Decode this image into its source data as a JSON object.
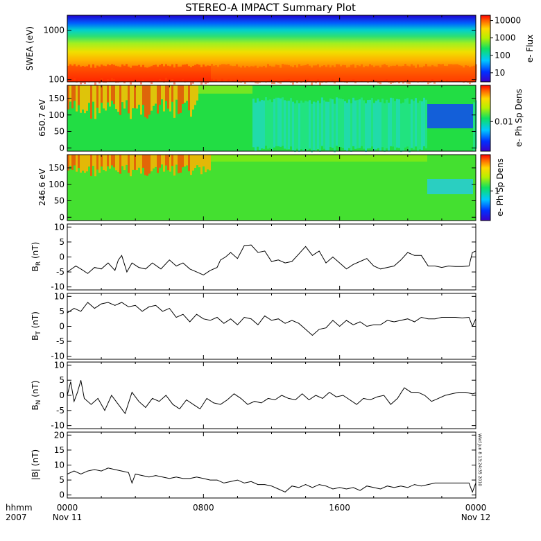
{
  "title": "STEREO-A IMPACT Summary Plot",
  "timestamp_stamp": "Wed Jun  8 13:24:35 2010",
  "x_axis": {
    "label_top": "hhmm",
    "label_bottom": "2007",
    "ticks": [
      {
        "hours": 0,
        "label": "0000",
        "date": "Nov 11"
      },
      {
        "hours": 8,
        "label": "0800",
        "date": ""
      },
      {
        "hours": 16,
        "label": "1600",
        "date": ""
      },
      {
        "hours": 24,
        "label": "0000",
        "date": "Nov 12"
      }
    ]
  },
  "chart_data": [
    {
      "type": "heatmap",
      "id": "swea-spectrogram",
      "ylabel": "SWEA (eV)",
      "yscale": "log",
      "ylim": [
        90,
        2000
      ],
      "yticks": [
        {
          "v": 100,
          "label": "100"
        },
        {
          "v": 1000,
          "label": "1000"
        }
      ],
      "colorbar": {
        "label": "e- Flux",
        "scale": "log",
        "range": [
          3,
          20000
        ],
        "ticks": [
          {
            "v": 10,
            "label": "10"
          },
          {
            "v": 100,
            "label": "100"
          },
          {
            "v": 1000,
            "label": "1000"
          },
          {
            "v": 10000,
            "label": "10000"
          }
        ]
      },
      "x_hours": [
        0,
        24
      ]
    },
    {
      "type": "heatmap",
      "id": "pad-650",
      "ylabel": "650.7 eV",
      "ylim": [
        -10,
        190
      ],
      "yticks": [
        {
          "v": 0,
          "label": "0"
        },
        {
          "v": 50,
          "label": "50"
        },
        {
          "v": 100,
          "label": "100"
        },
        {
          "v": 150,
          "label": "150"
        }
      ],
      "colorbar": {
        "label": "e- Ph Sp Dens",
        "scale": "log",
        "ticks": [
          {
            "v": 0.01,
            "label": "0.01"
          }
        ]
      },
      "x_hours": [
        0,
        24
      ]
    },
    {
      "type": "heatmap",
      "id": "pad-246",
      "ylabel": "246.6 eV",
      "ylim": [
        -10,
        190
      ],
      "yticks": [
        {
          "v": 0,
          "label": "0"
        },
        {
          "v": 50,
          "label": "50"
        },
        {
          "v": 100,
          "label": "100"
        },
        {
          "v": 150,
          "label": "150"
        }
      ],
      "colorbar": {
        "label": "e- Ph Sp Dens",
        "scale": "log",
        "ticks": [
          {
            "v": 1,
            "label": "1"
          }
        ]
      },
      "x_hours": [
        0,
        24
      ]
    },
    {
      "type": "line",
      "id": "br",
      "ylabel": "B_R (nT)",
      "ylim": [
        -11,
        11
      ],
      "yticks": [
        {
          "v": -10,
          "label": "-10"
        },
        {
          "v": -5,
          "label": "-5"
        },
        {
          "v": 0,
          "label": "0"
        },
        {
          "v": 5,
          "label": "5"
        },
        {
          "v": 10,
          "label": "10"
        }
      ],
      "x": [
        0,
        0.5,
        0.8,
        1.2,
        1.6,
        2.0,
        2.4,
        2.8,
        3.0,
        3.2,
        3.5,
        3.8,
        4.2,
        4.6,
        5.0,
        5.5,
        6.0,
        6.4,
        6.8,
        7.2,
        7.6,
        8.0,
        8.4,
        8.8,
        9.0,
        9.3,
        9.6,
        10.0,
        10.4,
        10.8,
        11.2,
        11.6,
        12.0,
        12.4,
        12.8,
        13.2,
        13.6,
        14.0,
        14.4,
        14.8,
        15.2,
        15.6,
        16.0,
        16.4,
        16.8,
        17.2,
        17.6,
        18.0,
        18.4,
        18.8,
        19.2,
        19.6,
        20.0,
        20.4,
        20.8,
        21.2,
        21.6,
        22.0,
        22.4,
        22.8,
        23.2,
        23.6,
        23.8,
        24.0
      ],
      "y": [
        -5,
        -3,
        -4,
        -5.5,
        -3.5,
        -4,
        -2,
        -4.5,
        -1,
        0.5,
        -5,
        -2,
        -3.5,
        -4,
        -2,
        -4,
        -1,
        -3,
        -2,
        -4,
        -5,
        -6,
        -4.5,
        -3.5,
        -1,
        0,
        1.5,
        -0.5,
        3.8,
        4,
        1.5,
        2,
        -1.5,
        -1,
        -2,
        -1.5,
        1,
        3.5,
        0.5,
        2,
        -2,
        0,
        -2,
        -4,
        -2.5,
        -1.5,
        -0.5,
        -3,
        -4,
        -3.5,
        -3,
        -1,
        1.5,
        0.5,
        0.5,
        -3,
        -3,
        -3.5,
        -3,
        -3.2,
        -3.2,
        -3,
        1.5,
        2
      ]
    },
    {
      "type": "line",
      "id": "bt",
      "ylabel": "B_T (nT)",
      "ylim": [
        -11,
        11
      ],
      "yticks": [
        {
          "v": -10,
          "label": "-10"
        },
        {
          "v": -5,
          "label": "-5"
        },
        {
          "v": 0,
          "label": "0"
        },
        {
          "v": 5,
          "label": "5"
        },
        {
          "v": 10,
          "label": "10"
        }
      ],
      "x": [
        0,
        0.4,
        0.8,
        1.2,
        1.6,
        2.0,
        2.4,
        2.8,
        3.2,
        3.6,
        4.0,
        4.4,
        4.8,
        5.2,
        5.6,
        6.0,
        6.4,
        6.8,
        7.2,
        7.6,
        8.0,
        8.4,
        8.8,
        9.2,
        9.6,
        10.0,
        10.4,
        10.8,
        11.2,
        11.6,
        12.0,
        12.4,
        12.8,
        13.2,
        13.6,
        14.0,
        14.4,
        14.8,
        15.2,
        15.6,
        16.0,
        16.4,
        16.8,
        17.2,
        17.6,
        18.0,
        18.4,
        18.8,
        19.2,
        19.6,
        20.0,
        20.4,
        20.8,
        21.2,
        21.6,
        22.0,
        22.4,
        22.8,
        23.2,
        23.6,
        23.8,
        24.0
      ],
      "y": [
        4.5,
        6,
        5,
        8,
        6,
        7.5,
        8,
        7,
        8,
        6.5,
        7,
        5,
        6.5,
        7,
        5,
        6,
        3,
        4,
        1.5,
        4,
        2.5,
        2,
        3,
        1,
        2.5,
        0.5,
        3,
        2.5,
        0.5,
        3.5,
        2,
        2.5,
        1,
        2,
        1,
        -1,
        -3,
        -1,
        -0.5,
        2,
        0,
        2,
        0.5,
        1.5,
        0,
        0.5,
        0.5,
        2,
        1.5,
        2,
        2.5,
        1.5,
        3,
        2.5,
        2.5,
        3,
        3,
        3,
        2.8,
        3,
        0,
        2.5
      ]
    },
    {
      "type": "line",
      "id": "bn",
      "ylabel": "B_N (nT)",
      "ylim": [
        -11,
        11
      ],
      "yticks": [
        {
          "v": -10,
          "label": "-10"
        },
        {
          "v": -5,
          "label": "-5"
        },
        {
          "v": 0,
          "label": "0"
        },
        {
          "v": 5,
          "label": "5"
        },
        {
          "v": 10,
          "label": "10"
        }
      ],
      "x": [
        0,
        0.2,
        0.4,
        0.6,
        0.8,
        1.0,
        1.4,
        1.8,
        2.2,
        2.6,
        3.0,
        3.4,
        3.8,
        4.2,
        4.6,
        5.0,
        5.4,
        5.8,
        6.2,
        6.6,
        7.0,
        7.4,
        7.8,
        8.2,
        8.6,
        9.0,
        9.4,
        9.8,
        10.2,
        10.6,
        11.0,
        11.4,
        11.8,
        12.2,
        12.6,
        13.0,
        13.4,
        13.8,
        14.2,
        14.6,
        15.0,
        15.4,
        15.8,
        16.2,
        16.6,
        17.0,
        17.4,
        17.8,
        18.2,
        18.6,
        19.0,
        19.4,
        19.8,
        20.2,
        20.6,
        21.0,
        21.4,
        21.8,
        22.2,
        22.6,
        23.0,
        23.4,
        23.8,
        24.0
      ],
      "y": [
        0,
        4.5,
        -2,
        1,
        5,
        -1,
        -3,
        -1,
        -5,
        0,
        -3,
        -6,
        1,
        -2,
        -4,
        -1,
        -2,
        0,
        -3,
        -4.5,
        -1.5,
        -3,
        -4.5,
        -1,
        -2.5,
        -3,
        -1.5,
        0.5,
        -1,
        -3,
        -2,
        -2.5,
        -1,
        -1.5,
        0,
        -1,
        -1.5,
        0.5,
        -1.5,
        0,
        -1,
        1,
        -0.5,
        0,
        -1.5,
        -3,
        -1,
        -1.5,
        -0.5,
        0,
        -3,
        -1,
        2.5,
        1,
        1,
        0,
        -2,
        -1,
        0,
        0.5,
        1,
        1,
        0.5,
        0.8
      ]
    },
    {
      "type": "line",
      "id": "bmag",
      "ylabel": "|B| (nT)",
      "ylim": [
        -1,
        21
      ],
      "yticks": [
        {
          "v": 0,
          "label": "0"
        },
        {
          "v": 5,
          "label": "5"
        },
        {
          "v": 10,
          "label": "10"
        },
        {
          "v": 15,
          "label": "15"
        },
        {
          "v": 20,
          "label": "20"
        }
      ],
      "x": [
        0,
        0.4,
        0.8,
        1.2,
        1.6,
        2.0,
        2.4,
        2.8,
        3.2,
        3.6,
        3.8,
        4.0,
        4.4,
        4.8,
        5.2,
        5.6,
        6.0,
        6.4,
        6.8,
        7.2,
        7.6,
        8.0,
        8.4,
        8.8,
        9.2,
        9.6,
        10.0,
        10.4,
        10.8,
        11.2,
        11.6,
        12.0,
        12.4,
        12.8,
        13.2,
        13.6,
        14.0,
        14.4,
        14.8,
        15.2,
        15.6,
        16.0,
        16.4,
        16.8,
        17.2,
        17.6,
        18.0,
        18.4,
        18.8,
        19.2,
        19.6,
        20.0,
        20.4,
        20.8,
        21.2,
        21.6,
        22.0,
        22.4,
        22.8,
        23.2,
        23.6,
        23.8,
        24.0
      ],
      "y": [
        7,
        8,
        7,
        8,
        8.5,
        8,
        9,
        8.5,
        8,
        7.5,
        4,
        7,
        6.5,
        6,
        6.5,
        6,
        5.5,
        6,
        5.5,
        5.5,
        6,
        5.5,
        5,
        5,
        4,
        4.5,
        5,
        4,
        4.5,
        3.5,
        3.5,
        3,
        2,
        1,
        3,
        2.5,
        3.5,
        2.5,
        3.5,
        3,
        2,
        2.5,
        2,
        2.5,
        1.5,
        3,
        2.5,
        2,
        3,
        2.5,
        3,
        2.5,
        3.5,
        3,
        3.5,
        4,
        4,
        4,
        4,
        4,
        4,
        1,
        4
      ]
    }
  ]
}
